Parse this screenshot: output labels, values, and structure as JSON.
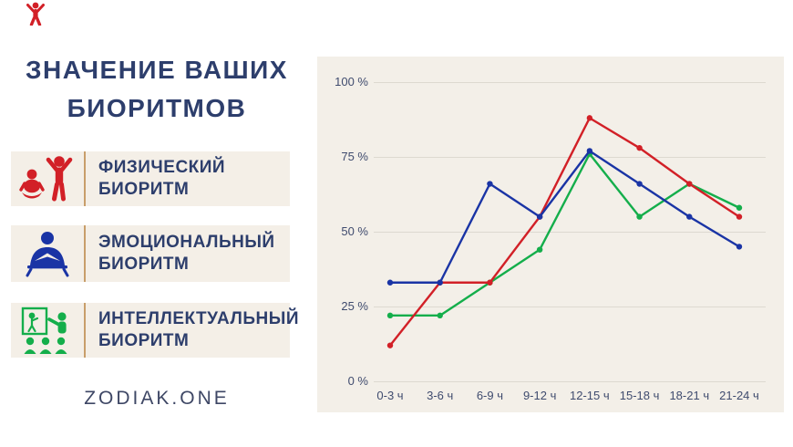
{
  "title": {
    "line1": "ЗНАЧЕНИЕ ВАШИХ",
    "line2": "БИОРИТМОВ"
  },
  "brand": "ZODIAK.ONE",
  "colors": {
    "navy_text": "#2d3e6c",
    "card_background": "#f4efe7",
    "chart_background": "#f3efe8",
    "divider_tan": "#c89e6a",
    "physical_red": "#d22027",
    "emotional_blue": "#1a34a5",
    "intellectual_green": "#14ae4b",
    "gridline": "#ddd9d0",
    "axis_text": "#3f4b6e"
  },
  "legend": {
    "items": [
      {
        "line1": "ФИЗИЧЕСКИЙ",
        "line2": "БИОРИТМ",
        "icon": "exercise-icon",
        "color": "#d22027"
      },
      {
        "line1": "ЭМОЦИОНАЛЬНЫЙ",
        "line2": "БИОРИТМ",
        "icon": "reading-icon",
        "color": "#1a34a5"
      },
      {
        "line1": "ИНТЕЛЛЕКТУАЛЬНЫЙ",
        "line2": "БИОРИТМ",
        "icon": "presentation-icon",
        "color": "#14ae4b"
      }
    ]
  },
  "chart_data": {
    "type": "line",
    "categories": [
      "0-3 ч",
      "3-6 ч",
      "6-9 ч",
      "9-12 ч",
      "12-15 ч",
      "15-18 ч",
      "18-21 ч",
      "21-24 ч"
    ],
    "series": [
      {
        "name": "Физический биоритм",
        "color": "#d22027",
        "values": [
          12,
          33,
          33,
          55,
          88,
          78,
          66,
          55
        ]
      },
      {
        "name": "Эмоциональный биоритм",
        "color": "#1a34a5",
        "values": [
          33,
          33,
          66,
          55,
          77,
          66,
          55,
          45
        ]
      },
      {
        "name": "Интеллектуальный биоритм",
        "color": "#14ae4b",
        "values": [
          22,
          22,
          33,
          44,
          76,
          55,
          66,
          58
        ]
      }
    ],
    "y_ticks": [
      "100 %",
      "75 %",
      "50 %",
      "25 %",
      "0 %"
    ],
    "y_tick_values": [
      100,
      75,
      50,
      25,
      0
    ],
    "ylim": [
      0,
      100
    ],
    "xlabel": "",
    "ylabel": "",
    "grid": true,
    "legend_position": "left-panel"
  }
}
